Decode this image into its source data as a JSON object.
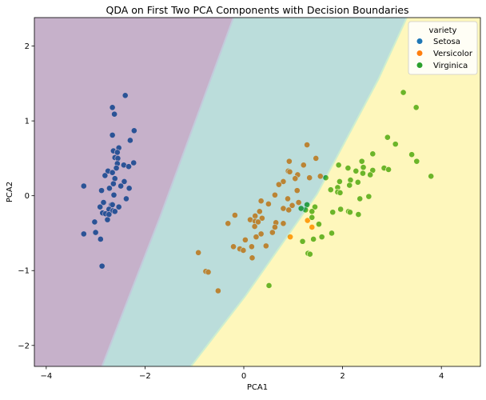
{
  "chart_data": {
    "type": "scatter",
    "title": "QDA on First Two PCA Components with Decision Boundaries",
    "xlabel": "PCA1",
    "ylabel": "PCA2",
    "xlim": [
      -4.24,
      4.79
    ],
    "ylim": [
      -2.28,
      2.38
    ],
    "xticks": [
      -4,
      -2,
      0,
      2,
      4
    ],
    "yticks": [
      -2,
      -1,
      0,
      1,
      2
    ],
    "grid": false,
    "legend": {
      "title": "variety",
      "placement": "top-right"
    },
    "region_colors": {
      "Setosa": "#440154",
      "Versicolor": "#21918c",
      "Virginica": "#fde725"
    },
    "region_alpha": 0.3,
    "decision_boundaries": {
      "setosa_versicolor": [
        [
          -0.21,
          2.38
        ],
        [
          -1.7,
          -0.29
        ],
        [
          -2.19,
          -1.12
        ],
        [
          -2.87,
          -2.28
        ]
      ],
      "versicolor_virginica": [
        [
          3.3,
          2.38
        ],
        [
          2.72,
          1.55
        ],
        [
          1.48,
          0.02
        ],
        [
          0.03,
          -1.34
        ],
        [
          -1.07,
          -2.28
        ]
      ]
    },
    "series": [
      {
        "name": "Setosa",
        "color": "#1f77b4",
        "points": [
          [
            -2.4,
            1.34
          ],
          [
            -2.66,
            1.18
          ],
          [
            -2.62,
            1.09
          ],
          [
            -2.22,
            0.87
          ],
          [
            -2.66,
            0.81
          ],
          [
            -2.3,
            0.74
          ],
          [
            -2.53,
            0.64
          ],
          [
            -2.64,
            0.6
          ],
          [
            -2.56,
            0.58
          ],
          [
            -2.61,
            0.51
          ],
          [
            -2.55,
            0.5
          ],
          [
            -2.56,
            0.43
          ],
          [
            -2.23,
            0.44
          ],
          [
            -2.43,
            0.41
          ],
          [
            -2.33,
            0.39
          ],
          [
            -2.58,
            0.37
          ],
          [
            -2.75,
            0.33
          ],
          [
            -2.66,
            0.31
          ],
          [
            -2.81,
            0.27
          ],
          [
            -2.61,
            0.23
          ],
          [
            -2.42,
            0.19
          ],
          [
            -2.64,
            0.16
          ],
          [
            -3.24,
            0.13
          ],
          [
            -2.49,
            0.13
          ],
          [
            -2.72,
            0.1
          ],
          [
            -2.32,
            0.1
          ],
          [
            -2.88,
            0.07
          ],
          [
            -2.63,
            0.01
          ],
          [
            -2.38,
            -0.04
          ],
          [
            -2.84,
            -0.09
          ],
          [
            -2.68,
            -0.12
          ],
          [
            -2.66,
            -0.12
          ],
          [
            -2.91,
            -0.15
          ],
          [
            -2.53,
            -0.15
          ],
          [
            -2.73,
            -0.18
          ],
          [
            -2.65,
            -0.2
          ],
          [
            -2.61,
            -0.21
          ],
          [
            -2.86,
            -0.23
          ],
          [
            -2.8,
            -0.24
          ],
          [
            -2.73,
            -0.25
          ],
          [
            -2.76,
            -0.32
          ],
          [
            -3.02,
            -0.35
          ],
          [
            -3.0,
            -0.49
          ],
          [
            -3.24,
            -0.51
          ],
          [
            -2.9,
            -0.58
          ],
          [
            -2.87,
            -0.94
          ]
        ]
      },
      {
        "name": "Versicolor",
        "color": "#ff7f0e",
        "points": [
          [
            1.28,
            0.68
          ],
          [
            1.46,
            0.5
          ],
          [
            0.92,
            0.46
          ],
          [
            1.21,
            0.41
          ],
          [
            0.9,
            0.33
          ],
          [
            0.93,
            0.32
          ],
          [
            1.09,
            0.28
          ],
          [
            1.04,
            0.23
          ],
          [
            1.33,
            0.24
          ],
          [
            1.55,
            0.26
          ],
          [
            0.8,
            0.19
          ],
          [
            0.71,
            0.15
          ],
          [
            1.08,
            0.07
          ],
          [
            0.63,
            0.01
          ],
          [
            0.89,
            -0.04
          ],
          [
            0.35,
            -0.07
          ],
          [
            1.11,
            -0.09
          ],
          [
            0.5,
            -0.11
          ],
          [
            0.98,
            -0.13
          ],
          [
            0.8,
            -0.17
          ],
          [
            0.91,
            -0.19
          ],
          [
            0.32,
            -0.21
          ],
          [
            -0.18,
            -0.26
          ],
          [
            0.23,
            -0.27
          ],
          [
            0.37,
            -0.3
          ],
          [
            0.13,
            -0.32
          ],
          [
            0.23,
            -0.34
          ],
          [
            0.29,
            -0.35
          ],
          [
            0.65,
            -0.36
          ],
          [
            -0.32,
            -0.37
          ],
          [
            0.8,
            -0.37
          ],
          [
            0.22,
            -0.41
          ],
          [
            0.63,
            -0.42
          ],
          [
            0.58,
            -0.49
          ],
          [
            0.35,
            -0.51
          ],
          [
            0.25,
            -0.55
          ],
          [
            0.03,
            -0.59
          ],
          [
            0.45,
            -0.67
          ],
          [
            0.16,
            -0.68
          ],
          [
            -0.21,
            -0.68
          ],
          [
            -0.08,
            -0.71
          ],
          [
            -0.01,
            -0.73
          ],
          [
            0.17,
            -0.83
          ],
          [
            -0.92,
            -0.76
          ],
          [
            -0.77,
            -1.01
          ],
          [
            -0.72,
            -1.02
          ],
          [
            -0.52,
            -1.27
          ],
          [
            1.29,
            -0.33
          ],
          [
            1.38,
            -0.42
          ],
          [
            0.94,
            -0.55
          ]
        ]
      },
      {
        "name": "Virginica",
        "color": "#2ca02c",
        "points": [
          [
            3.23,
            1.38
          ],
          [
            3.49,
            1.18
          ],
          [
            2.91,
            0.78
          ],
          [
            3.07,
            0.69
          ],
          [
            2.61,
            0.56
          ],
          [
            3.4,
            0.55
          ],
          [
            3.5,
            0.46
          ],
          [
            2.39,
            0.46
          ],
          [
            1.92,
            0.41
          ],
          [
            2.11,
            0.37
          ],
          [
            2.42,
            0.38
          ],
          [
            2.84,
            0.37
          ],
          [
            2.93,
            0.35
          ],
          [
            2.27,
            0.33
          ],
          [
            2.61,
            0.34
          ],
          [
            2.41,
            0.3
          ],
          [
            2.56,
            0.28
          ],
          [
            1.66,
            0.24
          ],
          [
            3.79,
            0.26
          ],
          [
            1.94,
            0.19
          ],
          [
            2.16,
            0.21
          ],
          [
            2.31,
            0.18
          ],
          [
            2.14,
            0.14
          ],
          [
            1.9,
            0.11
          ],
          [
            1.76,
            0.08
          ],
          [
            1.9,
            0.05
          ],
          [
            1.95,
            0.04
          ],
          [
            2.53,
            -0.01
          ],
          [
            2.35,
            -0.04
          ],
          [
            1.28,
            -0.12
          ],
          [
            1.44,
            -0.15
          ],
          [
            1.25,
            -0.19
          ],
          [
            1.38,
            -0.21
          ],
          [
            1.96,
            -0.18
          ],
          [
            1.8,
            -0.22
          ],
          [
            2.12,
            -0.21
          ],
          [
            2.15,
            -0.22
          ],
          [
            2.32,
            -0.25
          ],
          [
            1.38,
            -0.29
          ],
          [
            1.52,
            -0.38
          ],
          [
            1.78,
            -0.5
          ],
          [
            1.58,
            -0.55
          ],
          [
            1.41,
            -0.58
          ],
          [
            1.19,
            -0.61
          ],
          [
            1.3,
            -0.77
          ],
          [
            1.34,
            -0.78
          ],
          [
            0.51,
            -1.2
          ],
          [
            1.16,
            -0.17
          ]
        ]
      }
    ]
  }
}
